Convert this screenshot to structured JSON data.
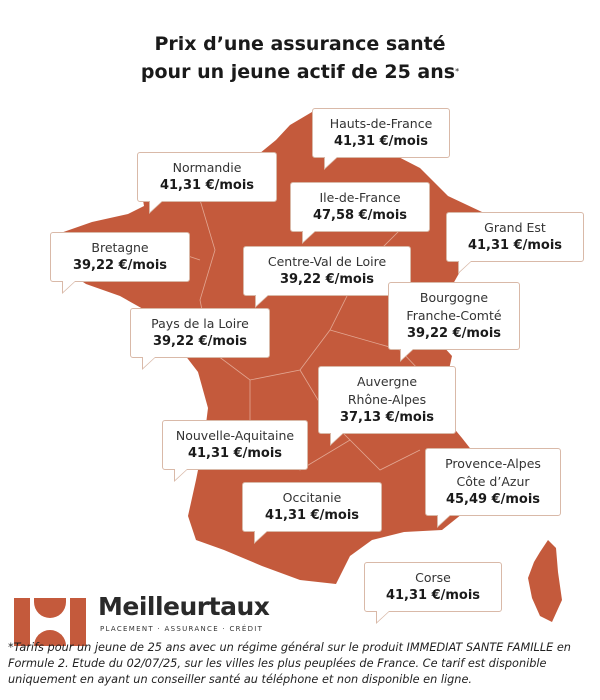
{
  "title_line1": "Prix d’une assurance santé",
  "title_line2": "pour un jeune actif de 25 ans",
  "title_mark": "*",
  "colors": {
    "map": "#c45a3c",
    "bubble_border": "#d9b9a8",
    "brand": "#c45a3c"
  },
  "regions": [
    {
      "name": "Hauts-de-France",
      "price": "41,31 €/mois"
    },
    {
      "name": "Normandie",
      "price": "41,31  €/mois"
    },
    {
      "name": "Ile-de-France",
      "price": "47,58 €/mois"
    },
    {
      "name": "Grand Est",
      "price": "41,31 €/mois"
    },
    {
      "name": "Bretagne",
      "price": "39,22 €/mois"
    },
    {
      "name": "Centre-Val de Loire",
      "price": "39,22 €/mois"
    },
    {
      "name": "Bourgogne\nFranche-Comté",
      "name1": "Bourgogne",
      "name2": "Franche-Comté",
      "price": "39,22 €/mois"
    },
    {
      "name": "Pays de la Loire",
      "price": "39,22 €/mois"
    },
    {
      "name": "Auvergne\nRhône-Alpes",
      "name1": "Auvergne",
      "name2": "Rhône-Alpes",
      "price": "37,13 €/mois"
    },
    {
      "name": "Nouvelle-Aquitaine",
      "price": "41,31  €/mois"
    },
    {
      "name": "Provence-Alpes\nCôte d’Azur",
      "name1": "Provence-Alpes",
      "name2": "Côte d’Azur",
      "price": "45,49 €/mois"
    },
    {
      "name": "Occitanie",
      "price": "41,31 €/mois"
    },
    {
      "name": "Corse",
      "price": "41,31 €/mois"
    }
  ],
  "brand": {
    "name": "Meilleurtaux",
    "tagline": "PLACEMENT · ASSURANCE · CRÉDIT"
  },
  "footnote": "*Tarifs pour un jeune de 25 ans avec un régime général sur le produit IMMEDIAT SANTE FAMILLE en Formule 2. Etude du 02/07/25, sur les villes les plus peuplées de France. Ce tarif est disponible uniquement en ayant un conseiller santé au téléphone et non disponible en ligne."
}
